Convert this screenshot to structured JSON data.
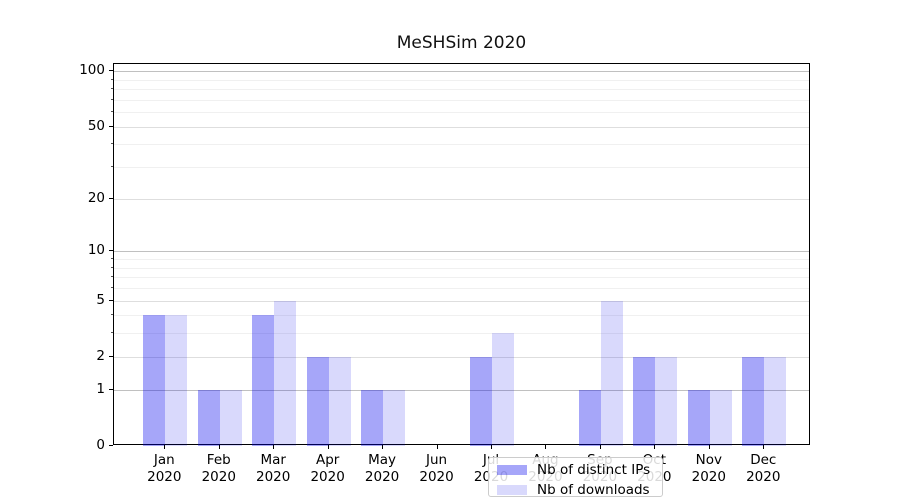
{
  "title": "MeSHSim 2020",
  "legend": {
    "items": [
      {
        "label": "Nb of distinct IPs",
        "color": "rgba(0,0,238,0.35)"
      },
      {
        "label": "Nb of downloads",
        "color": "rgba(0,0,238,0.15)"
      }
    ]
  },
  "chart_data": {
    "type": "bar",
    "title": "MeSHSim 2020",
    "categories": [
      "Jan",
      "Feb",
      "Mar",
      "Apr",
      "May",
      "Jun",
      "Jul",
      "Aug",
      "Sep",
      "Oct",
      "Nov",
      "Dec"
    ],
    "category_year": "2020",
    "series": [
      {
        "name": "Nb of distinct IPs",
        "color": "rgba(0,0,238,0.35)",
        "values": [
          4,
          1,
          4,
          2,
          1,
          0,
          2,
          0,
          1,
          2,
          1,
          2
        ]
      },
      {
        "name": "Nb of downloads",
        "color": "rgba(0,0,238,0.15)",
        "values": [
          4,
          1,
          5,
          2,
          1,
          0,
          3,
          0,
          5,
          2,
          1,
          2
        ]
      }
    ],
    "y_scale": "log1p",
    "y_major_ticks": [
      0,
      1,
      2,
      5,
      10,
      20,
      50,
      100
    ],
    "y_decade_ticks": [
      1,
      10,
      100
    ],
    "y_minor_ticks": [
      3,
      4,
      6,
      7,
      8,
      9,
      30,
      40,
      60,
      70,
      80,
      90
    ],
    "ylim": [
      0,
      110
    ],
    "grid": "on",
    "legend_position": "lower center"
  },
  "colors": {
    "spine": "#000000",
    "grid_decade": "#c0c0c0",
    "grid_major": "#dedede",
    "grid_minor": "#f0f0f0",
    "legend_border": "#cccccc",
    "legend_bg": "rgba(255,255,255,0.85)"
  }
}
